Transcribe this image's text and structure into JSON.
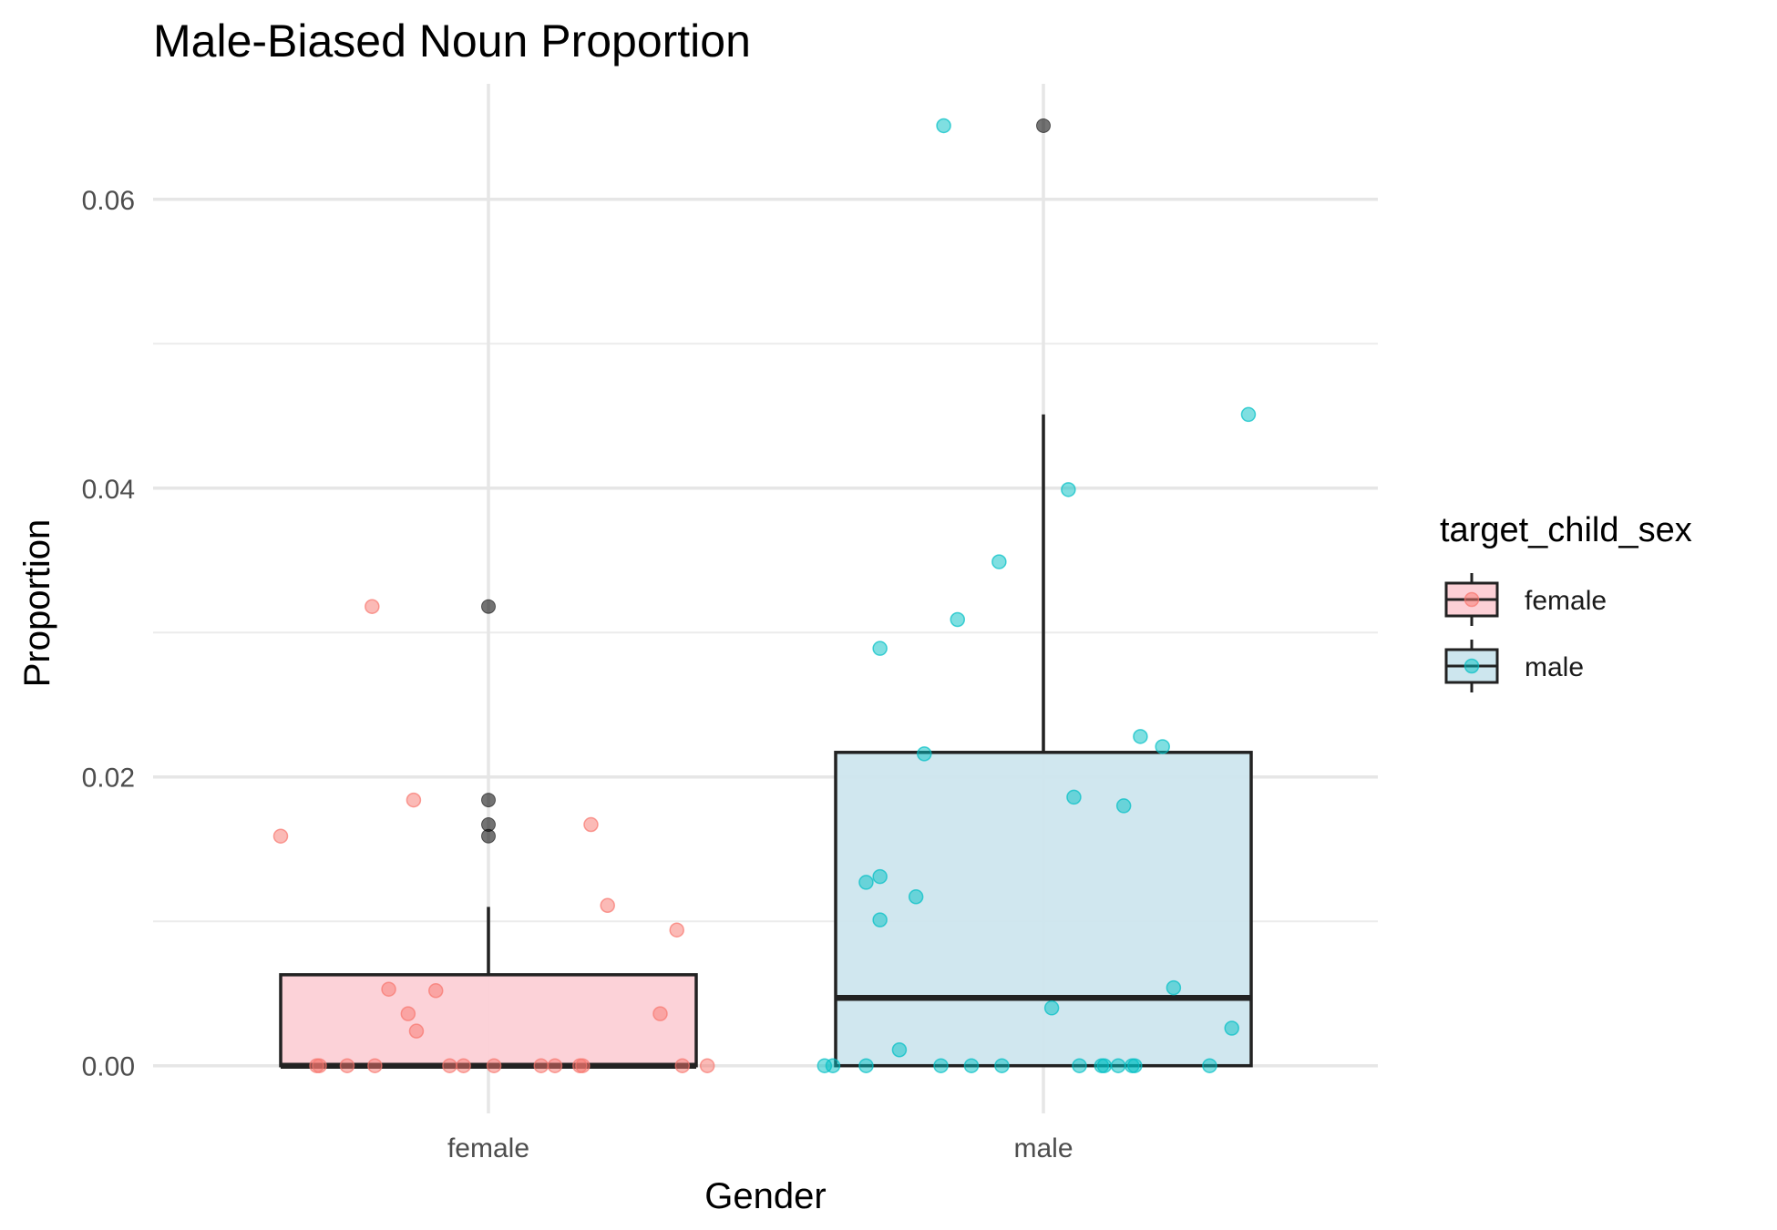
{
  "chart_data": {
    "type": "boxplot",
    "title": "Male-Biased Noun Proportion",
    "xlabel": "Gender",
    "ylabel": "Proportion",
    "categories": [
      "female",
      "male"
    ],
    "ylim": [
      -0.0033,
      0.068
    ],
    "yticks": [
      0.0,
      0.02,
      0.04,
      0.06
    ],
    "ytick_labels": [
      "0.00",
      "0.02",
      "0.04",
      "0.06"
    ],
    "grid": true,
    "legend": {
      "title": "target_child_sex",
      "position": "right",
      "entries": [
        {
          "label": "female",
          "fill": "#fcd0d6",
          "point": "#f8766d"
        },
        {
          "label": "male",
          "fill": "#cde6ee",
          "point": "#00bfc4"
        }
      ]
    },
    "boxes": [
      {
        "category": "female",
        "q1": 0.0,
        "median": 0.0,
        "q3": 0.0063,
        "whisker_low": 0.0,
        "whisker_high": 0.011,
        "outliers": [
          0.0318,
          0.0184,
          0.0167,
          0.0159
        ],
        "fill": "#fcd0d6",
        "point_color": "#f8766d",
        "points": [
          {
            "x": -0.75,
            "y": 0.0159
          },
          {
            "x": -0.42,
            "y": 0.0318
          },
          {
            "x": -0.27,
            "y": 0.0184
          },
          {
            "x": -0.36,
            "y": 0.0053
          },
          {
            "x": -0.29,
            "y": 0.0036
          },
          {
            "x": -0.26,
            "y": 0.0024
          },
          {
            "x": -0.19,
            "y": 0.0052
          },
          {
            "x": 0.37,
            "y": 0.0167
          },
          {
            "x": 0.43,
            "y": 0.0111
          },
          {
            "x": 0.68,
            "y": 0.0094
          },
          {
            "x": 0.62,
            "y": 0.0036
          },
          {
            "x": -0.62,
            "y": 0.0
          },
          {
            "x": -0.61,
            "y": 0.0
          },
          {
            "x": -0.51,
            "y": 0.0
          },
          {
            "x": -0.41,
            "y": 0.0
          },
          {
            "x": -0.14,
            "y": 0.0
          },
          {
            "x": -0.09,
            "y": 0.0
          },
          {
            "x": 0.02,
            "y": 0.0
          },
          {
            "x": 0.19,
            "y": 0.0
          },
          {
            "x": 0.24,
            "y": 0.0
          },
          {
            "x": 0.33,
            "y": 0.0
          },
          {
            "x": 0.34,
            "y": 0.0
          },
          {
            "x": 0.7,
            "y": 0.0
          },
          {
            "x": 0.79,
            "y": 0.0
          }
        ]
      },
      {
        "category": "male",
        "q1": 0.0,
        "median": 0.0047,
        "q3": 0.0217,
        "whisker_low": 0.0,
        "whisker_high": 0.0451,
        "outliers": [
          0.0651
        ],
        "fill": "#cde6ee",
        "point_color": "#00bfc4",
        "points": [
          {
            "x": -0.36,
            "y": 0.0651
          },
          {
            "x": 0.74,
            "y": 0.0451
          },
          {
            "x": 0.09,
            "y": 0.0399
          },
          {
            "x": -0.16,
            "y": 0.0349
          },
          {
            "x": -0.31,
            "y": 0.0309
          },
          {
            "x": -0.59,
            "y": 0.0289
          },
          {
            "x": 0.35,
            "y": 0.0228
          },
          {
            "x": 0.43,
            "y": 0.0221
          },
          {
            "x": -0.43,
            "y": 0.0216
          },
          {
            "x": 0.11,
            "y": 0.0186
          },
          {
            "x": 0.29,
            "y": 0.018
          },
          {
            "x": -0.64,
            "y": 0.0127
          },
          {
            "x": -0.59,
            "y": 0.0131
          },
          {
            "x": -0.46,
            "y": 0.0117
          },
          {
            "x": -0.59,
            "y": 0.0101
          },
          {
            "x": 0.47,
            "y": 0.0054
          },
          {
            "x": 0.03,
            "y": 0.004
          },
          {
            "x": 0.68,
            "y": 0.0026
          },
          {
            "x": -0.52,
            "y": 0.0011
          },
          {
            "x": -0.79,
            "y": 0.0
          },
          {
            "x": -0.76,
            "y": 0.0
          },
          {
            "x": -0.64,
            "y": 0.0
          },
          {
            "x": -0.37,
            "y": 0.0
          },
          {
            "x": -0.26,
            "y": 0.0
          },
          {
            "x": -0.15,
            "y": 0.0
          },
          {
            "x": 0.13,
            "y": 0.0
          },
          {
            "x": 0.21,
            "y": 0.0
          },
          {
            "x": 0.22,
            "y": 0.0
          },
          {
            "x": 0.27,
            "y": 0.0
          },
          {
            "x": 0.32,
            "y": 0.0
          },
          {
            "x": 0.33,
            "y": 0.0
          },
          {
            "x": 0.6,
            "y": 0.0
          }
        ]
      }
    ]
  }
}
